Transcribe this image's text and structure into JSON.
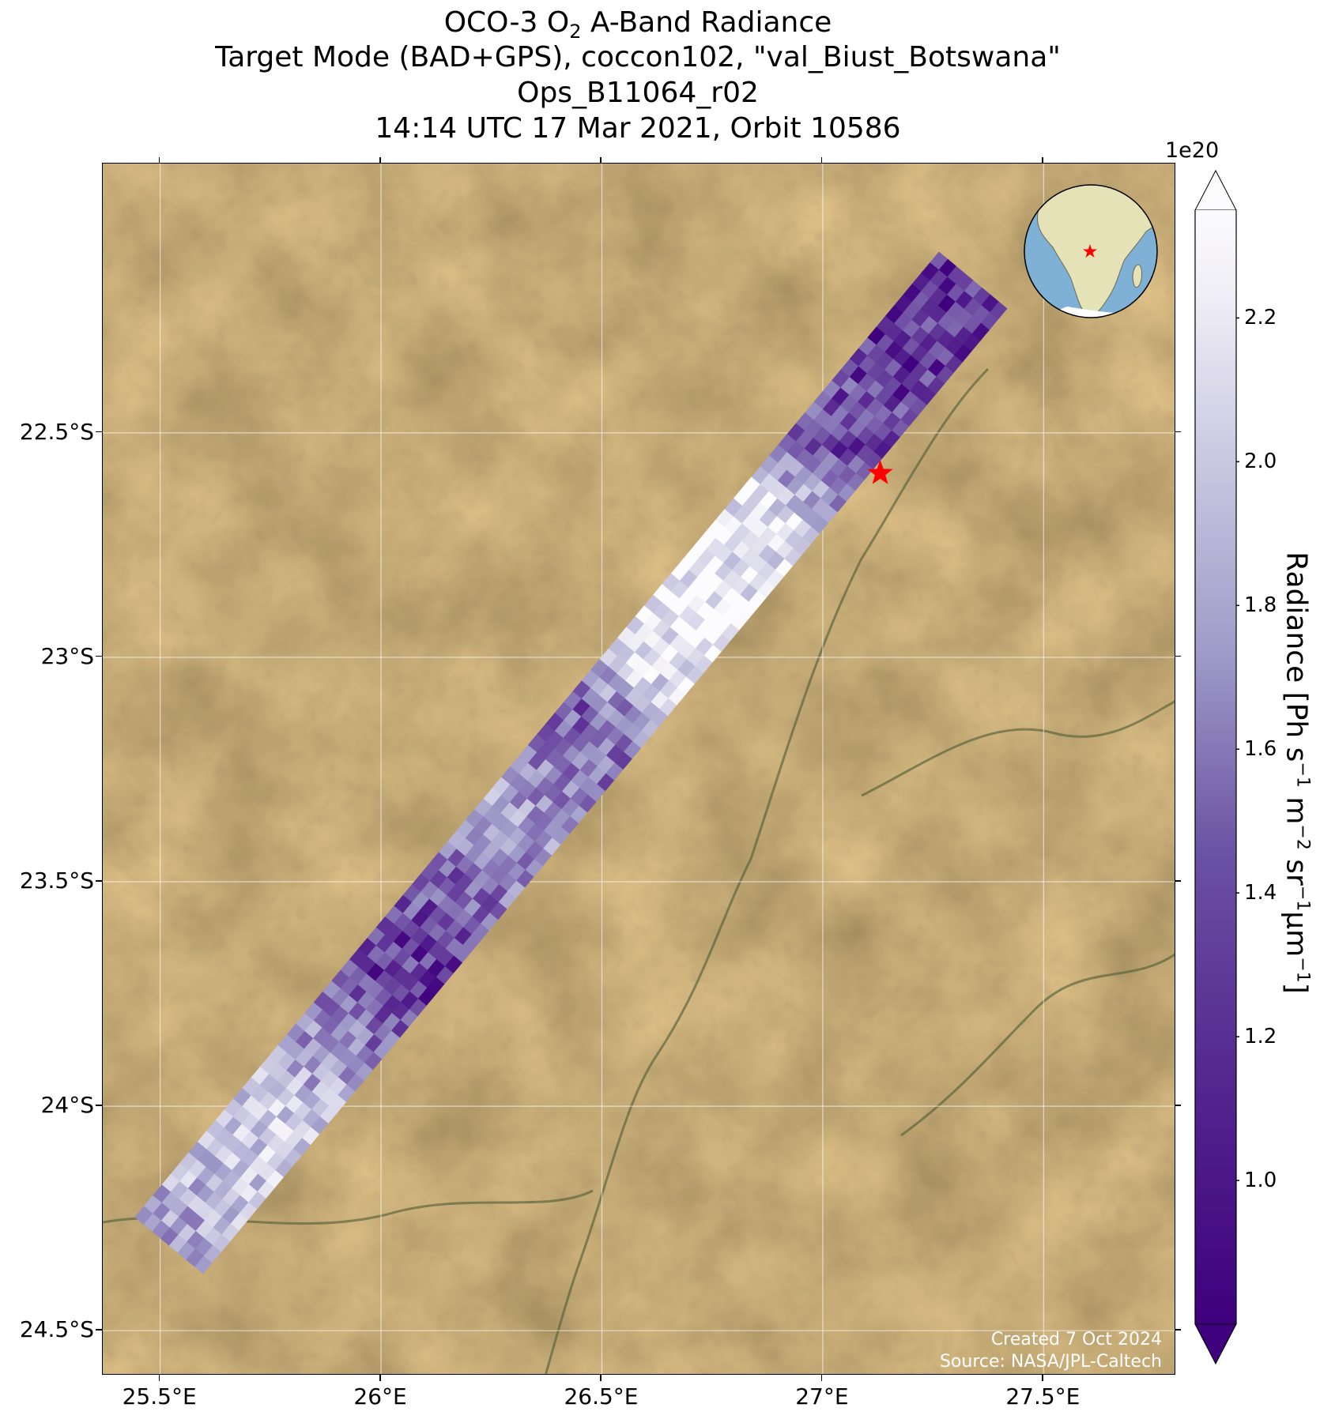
{
  "title": {
    "line1_prefix": "OCO-3 O",
    "line1_sub": "2",
    "line1_suffix": " A-Band Radiance",
    "line2": "Target Mode (BAD+GPS), coccon102, \"val_Biust_Botswana\"",
    "line3": "Ops_B11064_r02",
    "line4": "14:14 UTC 17 Mar 2021, Orbit 10586"
  },
  "map": {
    "lon_range": [
      25.37,
      27.8
    ],
    "lat_range": [
      -24.6,
      -21.9
    ],
    "x_ticks": [
      "25.5°E",
      "26°E",
      "26.5°E",
      "27°E",
      "27.5°E"
    ],
    "x_tick_values": [
      25.5,
      26.0,
      26.5,
      27.0,
      27.5
    ],
    "y_ticks": [
      "22.5°S",
      "23°S",
      "23.5°S",
      "24°S",
      "24.5°S"
    ],
    "y_tick_values": [
      -22.5,
      -23.0,
      -23.5,
      -24.0,
      -24.5
    ],
    "gridlines": true,
    "basemap": "satellite imagery",
    "target": {
      "marker": "star",
      "color": "#ff0000",
      "lon": 27.13,
      "lat": -22.59
    },
    "swath_color_scheme": "Purples_r",
    "inset_globe": {
      "position": "top-right",
      "target_marker": "star",
      "land_color": "#e6e2b8",
      "ocean_color": "#7fb0d6"
    }
  },
  "colorbar": {
    "label_main": "Radiance [Ph s",
    "exponent_label": "1e20",
    "ticks": [
      "1.0",
      "1.2",
      "1.4",
      "1.6",
      "1.8",
      "2.0",
      "2.2"
    ],
    "tick_values": [
      1.0,
      1.2,
      1.4,
      1.6,
      1.8,
      2.0,
      2.2
    ],
    "range": [
      0.8,
      2.35
    ],
    "extend": "both",
    "color_low": "#3f007d",
    "color_mid": "#9e9ac8",
    "color_high": "#fcfbfd"
  },
  "credits": {
    "created": "Created 7 Oct 2024",
    "source": "Source: NASA/JPL-Caltech"
  }
}
